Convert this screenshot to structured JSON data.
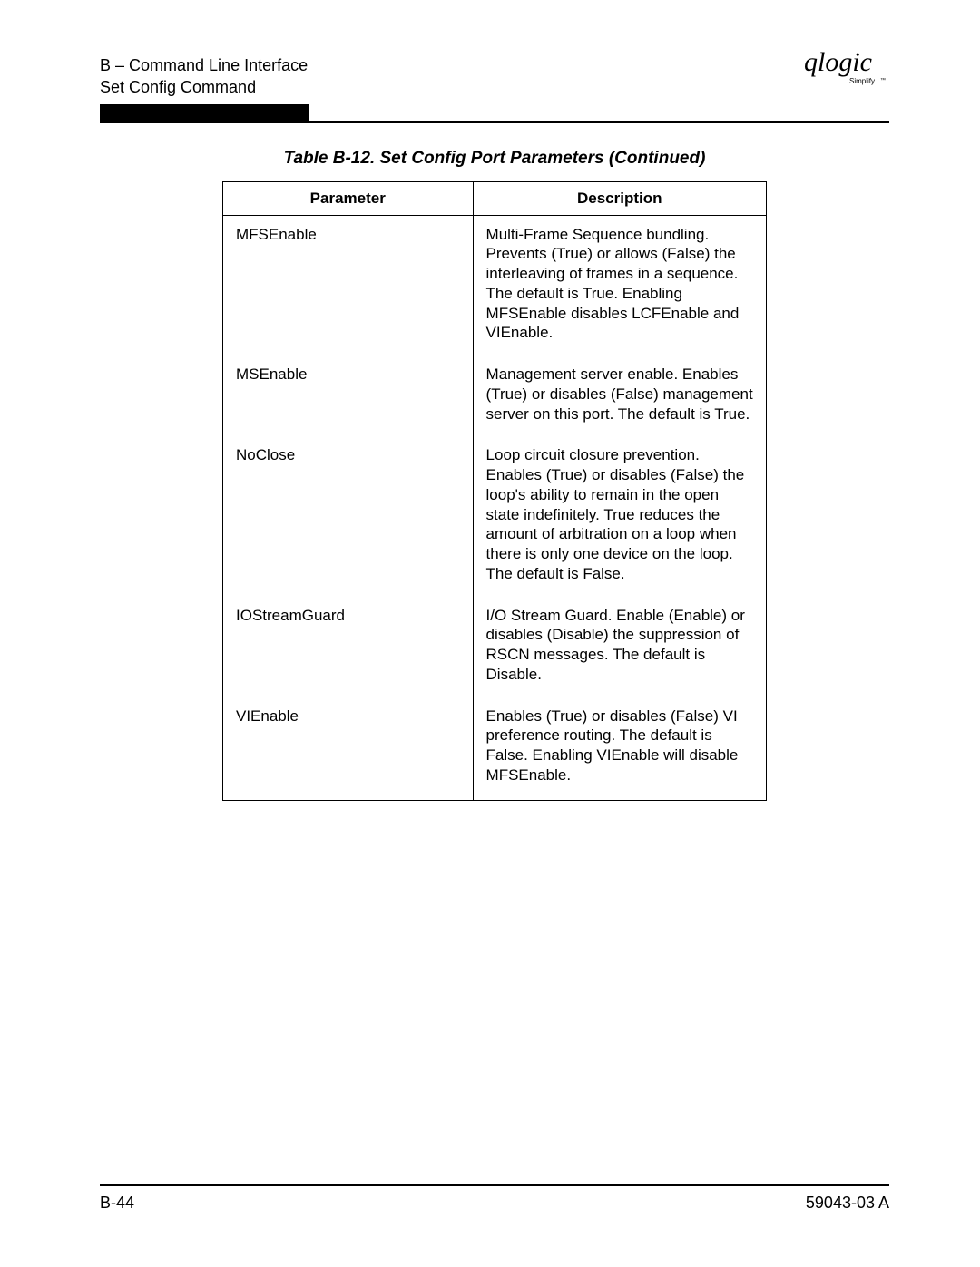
{
  "header": {
    "line1": "B – Command Line Interface",
    "line2": "Set Config Command",
    "logo_text": "qlogic",
    "logo_tag": "Simplify"
  },
  "table": {
    "caption": "Table B-12. Set Config Port Parameters (Continued)",
    "columns": [
      "Parameter",
      "Description"
    ],
    "rows": [
      {
        "parameter": "MFSEnable",
        "description": "Multi-Frame Sequence bundling. Prevents (True) or allows (False) the interleaving of frames in a sequence. The default is True. Enabling MFSEnable disables LCFEnable and VIEnable."
      },
      {
        "parameter": "MSEnable",
        "description": "Management server enable. Enables (True) or disables (False) management server on this port. The default is True."
      },
      {
        "parameter": "NoClose",
        "description": "Loop circuit closure prevention. Enables (True) or disables (False) the loop's ability to remain in the open state indefinitely. True reduces the amount of arbitration on a loop when there is only one device on the loop. The default is False."
      },
      {
        "parameter": "IOStreamGuard",
        "description": "I/O Stream Guard. Enable (Enable) or disables (Disable) the suppression of RSCN messages. The default is Disable."
      },
      {
        "parameter": "VIEnable",
        "description": "Enables (True) or disables (False) VI preference routing. The default is False. Enabling VIEnable will disable MFSEnable."
      }
    ]
  },
  "footer": {
    "page": "B-44",
    "docid": "59043-03  A"
  }
}
